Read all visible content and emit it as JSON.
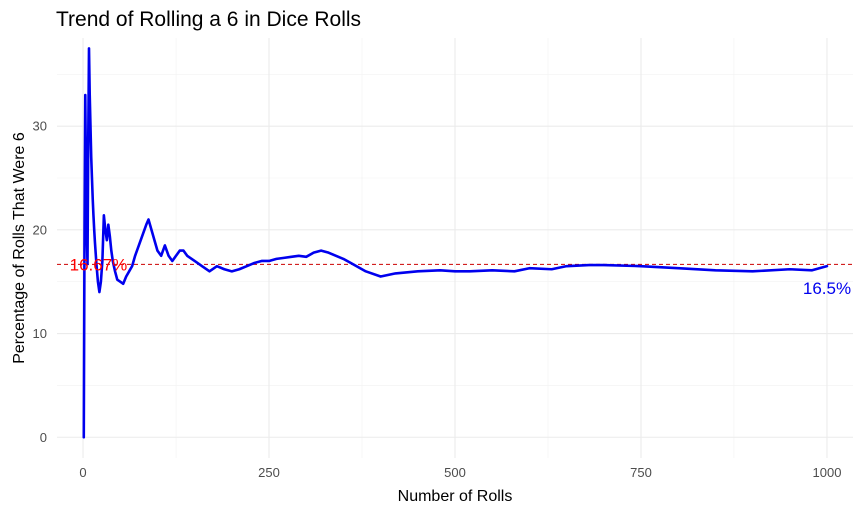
{
  "chart_data": {
    "type": "line",
    "title": "Trend of Rolling a 6 in Dice Rolls",
    "xlabel": "Number of Rolls",
    "ylabel": "Percentage of Rolls That Were 6",
    "xlim": [
      -35,
      1035
    ],
    "ylim": [
      -2,
      38.5
    ],
    "x_ticks": [
      0,
      250,
      500,
      750,
      1000
    ],
    "y_ticks": [
      0,
      10,
      20,
      30
    ],
    "grid": true,
    "legend": "none",
    "series": [
      {
        "color": "#0000ee",
        "x": [
          1,
          2,
          3,
          4,
          5,
          6,
          7,
          8,
          9,
          10,
          11,
          12,
          13,
          14,
          15,
          16,
          18,
          20,
          22,
          24,
          26,
          28,
          30,
          32,
          34,
          36,
          38,
          40,
          43,
          46,
          50,
          54,
          58,
          62,
          66,
          70,
          75,
          80,
          85,
          88,
          92,
          96,
          100,
          105,
          110,
          115,
          120,
          125,
          130,
          135,
          140,
          150,
          160,
          170,
          180,
          190,
          200,
          210,
          220,
          230,
          240,
          250,
          260,
          270,
          280,
          290,
          300,
          310,
          320,
          330,
          340,
          350,
          360,
          380,
          400,
          420,
          450,
          480,
          500,
          520,
          550,
          580,
          600,
          630,
          650,
          680,
          700,
          750,
          800,
          850,
          900,
          950,
          980,
          1000
        ],
        "y": [
          0,
          20,
          33,
          25,
          20,
          16.7,
          28.6,
          37.5,
          33,
          30,
          27,
          25,
          23,
          21.4,
          20,
          18.8,
          16.7,
          15,
          14,
          15,
          17,
          21.4,
          20,
          19,
          20.5,
          19.4,
          18,
          17,
          16,
          15.2,
          15,
          14.8,
          15.5,
          16,
          16.5,
          17.5,
          18.5,
          19.5,
          20.5,
          21,
          20,
          19,
          18,
          17.5,
          18.5,
          17.5,
          17,
          17.5,
          18,
          18,
          17.5,
          17,
          16.5,
          16,
          16.5,
          16.2,
          16,
          16.2,
          16.5,
          16.8,
          17,
          17,
          17.2,
          17.3,
          17.4,
          17.5,
          17.4,
          17.8,
          18,
          17.8,
          17.5,
          17.2,
          16.8,
          16,
          15.5,
          15.8,
          16,
          16.1,
          16,
          16,
          16.1,
          16,
          16.3,
          16.2,
          16.5,
          16.6,
          16.6,
          16.5,
          16.3,
          16.1,
          16,
          16.2,
          16.1,
          16.5
        ]
      }
    ],
    "reference_line": {
      "y": 16.67,
      "color": "#cc0000",
      "style": "dashed"
    },
    "annotations": [
      {
        "text": "16.67%",
        "x": -18,
        "y": 16.67,
        "color": "#ff0000",
        "anchor": "start"
      },
      {
        "text": "16.5%",
        "x": 1000,
        "y": 14.4,
        "color": "#0000ee",
        "anchor": "middle"
      }
    ]
  }
}
